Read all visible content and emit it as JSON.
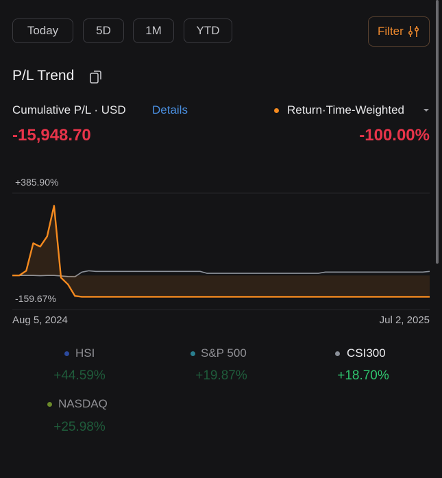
{
  "tabs": [
    "Today",
    "5D",
    "1M",
    "YTD"
  ],
  "filter": "Filter",
  "section_title": "P/L Trend",
  "summary": {
    "label": "Cumulative P/L · USD",
    "details": "Details",
    "metric": "Return·Time-Weighted",
    "pl_value": "-15,948.70",
    "return_value": "-100.00%"
  },
  "chart_data": {
    "type": "line",
    "ylim": [
      -159.67,
      385.9
    ],
    "yticks": [
      {
        "value": 385.9,
        "label": "+385.90%"
      },
      {
        "value": -159.67,
        "label": "-159.67%"
      }
    ],
    "x_labels": [
      "Aug 5, 2024",
      "Jul 2, 2025"
    ],
    "series": [
      {
        "color": "#f58a1f",
        "values": [
          0,
          0,
          22,
          151,
          135,
          183,
          327,
          -10,
          -42,
          -96,
          -100,
          -100,
          -100,
          -100,
          -100,
          -100,
          -100,
          -100,
          -100,
          -100,
          -100,
          -100,
          -100,
          -100,
          -100,
          -100,
          -100,
          -100,
          -100,
          -100,
          -100,
          -100,
          -100,
          -100,
          -100,
          -100,
          -100,
          -100,
          -100,
          -100,
          -100,
          -100,
          -100,
          -100,
          -100,
          -100,
          -100,
          -100,
          -100,
          -100,
          -100,
          -100,
          -100,
          -100,
          -100,
          -100,
          -100,
          -100,
          -100,
          -100,
          -100
        ]
      },
      {
        "color": "#8e939b",
        "values": [
          0,
          0,
          0,
          0,
          -1,
          0,
          0,
          -2,
          -5,
          -6,
          16,
          22,
          19,
          19,
          19,
          19,
          19,
          19,
          19,
          19,
          19,
          19,
          19,
          19,
          19,
          19,
          19,
          19,
          10,
          10,
          10,
          10,
          10,
          10,
          10,
          10,
          10,
          10,
          10,
          10,
          10,
          10,
          10,
          10,
          10,
          16,
          16,
          16,
          16,
          16,
          16,
          16,
          16,
          16,
          16,
          16,
          16,
          16,
          16,
          16,
          19
        ]
      }
    ]
  },
  "benchmarks": [
    {
      "name": "HSI",
      "color": "#2c4a9e",
      "change": "+44.59%"
    },
    {
      "name": "S&P 500",
      "color": "#2a7f8f",
      "change": "+19.87%"
    },
    {
      "name": "CSI300",
      "color": "#8a8f98",
      "change": "+18.70%"
    },
    {
      "name": "NASDAQ",
      "color": "#6b8a2a",
      "change": "+25.98%"
    }
  ]
}
